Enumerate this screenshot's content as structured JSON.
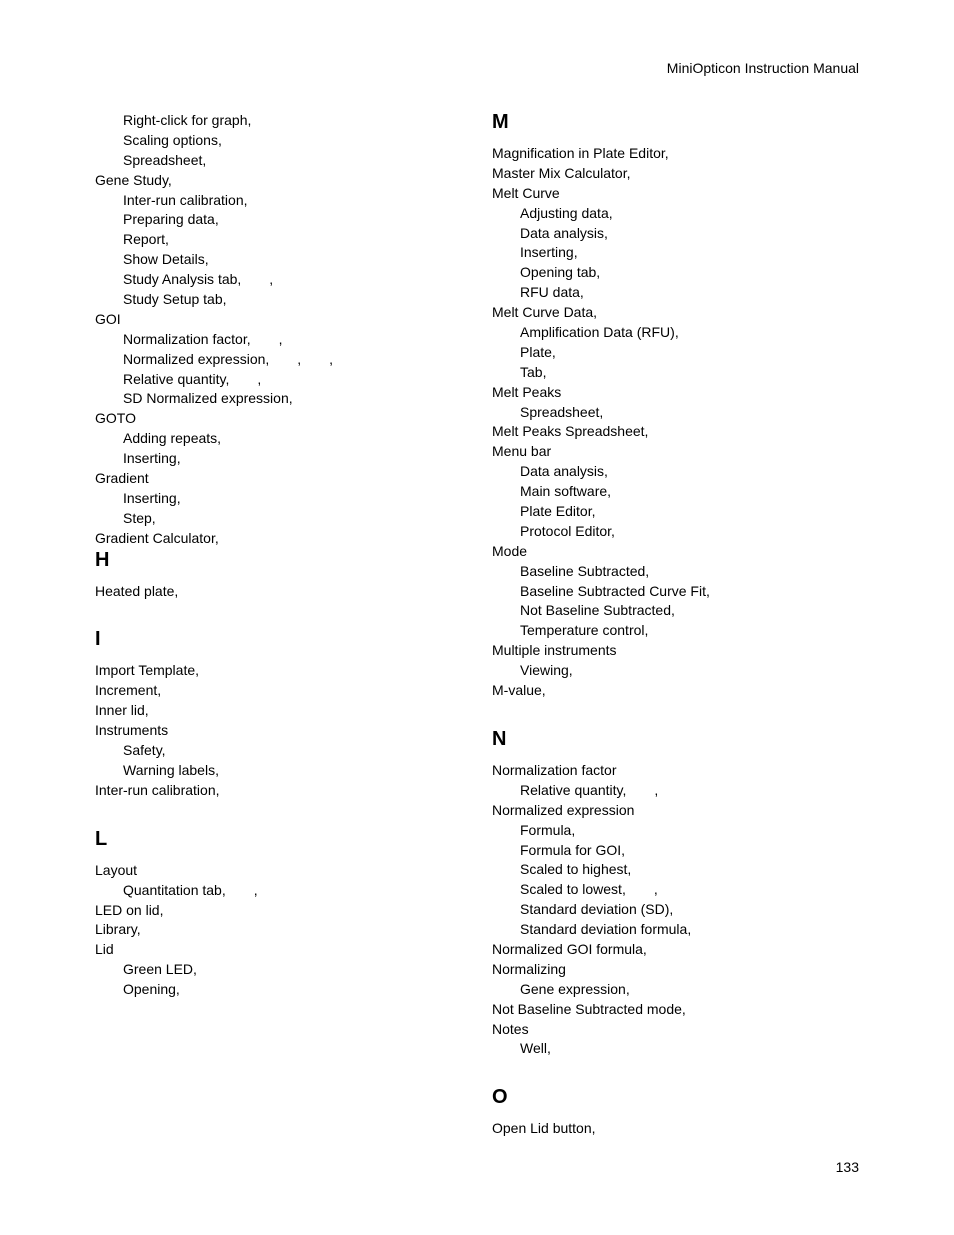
{
  "header": "MiniOpticon Instruction Manual",
  "pageNumber": "133",
  "leftColumn": {
    "preEntries": [
      {
        "text": "Right-click for graph,",
        "indent": 1
      },
      {
        "text": "Scaling options,",
        "indent": 1
      },
      {
        "text": "Spreadsheet,",
        "indent": 1
      },
      {
        "text": "Gene Study,",
        "indent": 0
      },
      {
        "text": "Inter-run calibration,",
        "indent": 1
      },
      {
        "text": "Preparing data,",
        "indent": 1
      },
      {
        "text": "Report,",
        "indent": 1
      },
      {
        "text": "Show Details,",
        "indent": 1
      },
      {
        "text": "Study Analysis tab,  ,",
        "indent": 1
      },
      {
        "text": "Study Setup tab,",
        "indent": 1
      },
      {
        "text": "GOI",
        "indent": 0
      },
      {
        "text": "Normalization factor,  ,",
        "indent": 1
      },
      {
        "text": "Normalized expression,  ,  ,",
        "indent": 1
      },
      {
        "text": "Relative quantity,  ,",
        "indent": 1
      },
      {
        "text": "SD Normalized expression,",
        "indent": 1
      },
      {
        "text": "GOTO",
        "indent": 0
      },
      {
        "text": "Adding repeats,",
        "indent": 1
      },
      {
        "text": "Inserting,",
        "indent": 1
      },
      {
        "text": "Gradient",
        "indent": 0
      },
      {
        "text": "Inserting,",
        "indent": 1
      },
      {
        "text": "Step,",
        "indent": 1
      },
      {
        "text": "Gradient Calculator,",
        "indent": 0
      }
    ],
    "sections": [
      {
        "letter": "H",
        "entries": [
          {
            "text": "Heated plate,",
            "indent": 0
          }
        ]
      },
      {
        "letter": "I",
        "entries": [
          {
            "text": "Import Template,",
            "indent": 0
          },
          {
            "text": "Increment,",
            "indent": 0
          },
          {
            "text": "Inner lid,",
            "indent": 0
          },
          {
            "text": "Instruments",
            "indent": 0
          },
          {
            "text": "Safety,",
            "indent": 1
          },
          {
            "text": "Warning labels,",
            "indent": 1
          },
          {
            "text": "Inter-run calibration,",
            "indent": 0
          }
        ]
      },
      {
        "letter": "L",
        "entries": [
          {
            "text": "Layout",
            "indent": 0
          },
          {
            "text": "Quantitation tab,  ,",
            "indent": 1
          },
          {
            "text": "LED on lid,",
            "indent": 0
          },
          {
            "text": "Library,",
            "indent": 0
          },
          {
            "text": "Lid",
            "indent": 0
          },
          {
            "text": "Green LED,",
            "indent": 1
          },
          {
            "text": "Opening,",
            "indent": 1
          }
        ]
      }
    ]
  },
  "rightColumn": {
    "sections": [
      {
        "letter": "M",
        "entries": [
          {
            "text": "Magnification in Plate Editor,",
            "indent": 0
          },
          {
            "text": "Master Mix Calculator,",
            "indent": 0
          },
          {
            "text": "Melt Curve",
            "indent": 0
          },
          {
            "text": "Adjusting data,",
            "indent": 1
          },
          {
            "text": "Data analysis,",
            "indent": 1
          },
          {
            "text": "Inserting,",
            "indent": 1
          },
          {
            "text": "Opening tab,",
            "indent": 1
          },
          {
            "text": "RFU data,",
            "indent": 1
          },
          {
            "text": "Melt Curve Data,",
            "indent": 0
          },
          {
            "text": "Amplification Data (RFU),",
            "indent": 1
          },
          {
            "text": "Plate,",
            "indent": 1
          },
          {
            "text": "Tab,",
            "indent": 1
          },
          {
            "text": "Melt Peaks",
            "indent": 0
          },
          {
            "text": "Spreadsheet,",
            "indent": 1
          },
          {
            "text": "Melt Peaks Spreadsheet,",
            "indent": 0
          },
          {
            "text": "Menu bar",
            "indent": 0
          },
          {
            "text": "Data analysis,",
            "indent": 1
          },
          {
            "text": "Main software,",
            "indent": 1
          },
          {
            "text": "Plate Editor,",
            "indent": 1
          },
          {
            "text": "Protocol Editor,",
            "indent": 1
          },
          {
            "text": "Mode",
            "indent": 0
          },
          {
            "text": "Baseline Subtracted,",
            "indent": 1
          },
          {
            "text": "Baseline Subtracted Curve Fit,",
            "indent": 1
          },
          {
            "text": "Not Baseline Subtracted,",
            "indent": 1
          },
          {
            "text": "Temperature control,",
            "indent": 1
          },
          {
            "text": "Multiple instruments",
            "indent": 0
          },
          {
            "text": "Viewing,",
            "indent": 1
          },
          {
            "text": "M-value,",
            "indent": 0
          }
        ]
      },
      {
        "letter": "N",
        "entries": [
          {
            "text": "Normalization factor",
            "indent": 0
          },
          {
            "text": "Relative quantity,  ,",
            "indent": 1
          },
          {
            "text": "Normalized expression",
            "indent": 0
          },
          {
            "text": "Formula,",
            "indent": 1
          },
          {
            "text": "Formula for GOI,",
            "indent": 1
          },
          {
            "text": "Scaled to highest,",
            "indent": 1
          },
          {
            "text": "Scaled to lowest,  ,",
            "indent": 1
          },
          {
            "text": "Standard deviation (SD),",
            "indent": 1
          },
          {
            "text": "Standard deviation formula,",
            "indent": 1
          },
          {
            "text": "Normalized GOI formula,",
            "indent": 0
          },
          {
            "text": "Normalizing",
            "indent": 0
          },
          {
            "text": "Gene expression,",
            "indent": 1
          },
          {
            "text": "Not Baseline Subtracted mode,",
            "indent": 0
          },
          {
            "text": "Notes",
            "indent": 0
          },
          {
            "text": "Well,",
            "indent": 1
          }
        ]
      },
      {
        "letter": "O",
        "entries": [
          {
            "text": "Open Lid button,",
            "indent": 0
          }
        ]
      }
    ]
  }
}
